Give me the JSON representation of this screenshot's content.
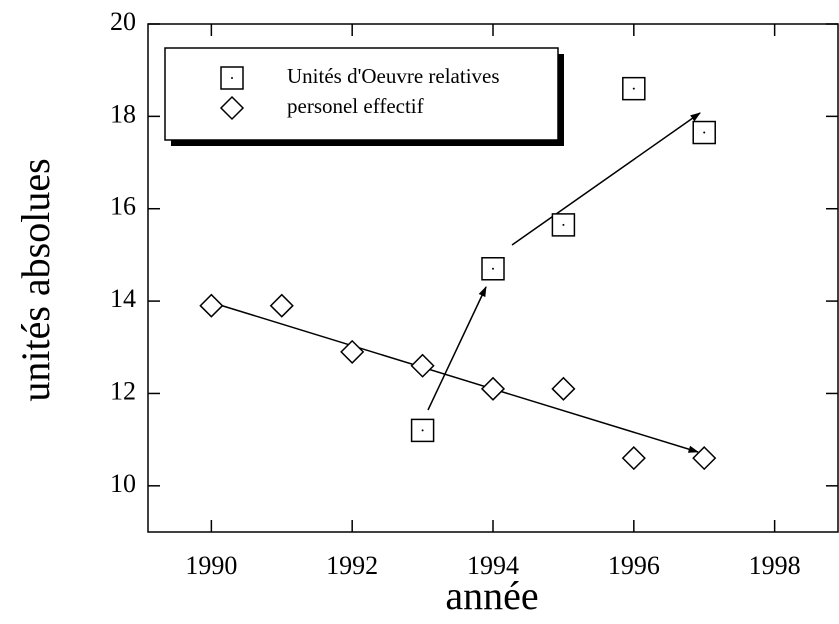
{
  "chart_data": {
    "type": "scatter",
    "xlabel": "année",
    "ylabel": "unités absolues",
    "xlim": [
      1989.1,
      1998.9
    ],
    "xticks": [
      1990,
      1992,
      1994,
      1996,
      1998
    ],
    "ylim": [
      9,
      20
    ],
    "yticks": [
      10,
      12,
      14,
      16,
      18,
      20
    ],
    "legend": "upper left",
    "series": [
      {
        "name": "Unités d'Oeuvre relatives",
        "color": "#000000",
        "marker": "square",
        "x": [
          1993,
          1994,
          1995,
          1996,
          1997
        ],
        "values": [
          11.2,
          14.7,
          15.65,
          18.6,
          17.65
        ]
      },
      {
        "name": "personel effectif",
        "color": "#000000",
        "marker": "diamond",
        "x": [
          1990,
          1991,
          1992,
          1993,
          1994,
          1995,
          1996,
          1997
        ],
        "values": [
          13.9,
          13.9,
          12.9,
          12.6,
          12.1,
          12.1,
          10.6,
          10.6
        ]
      }
    ]
  }
}
